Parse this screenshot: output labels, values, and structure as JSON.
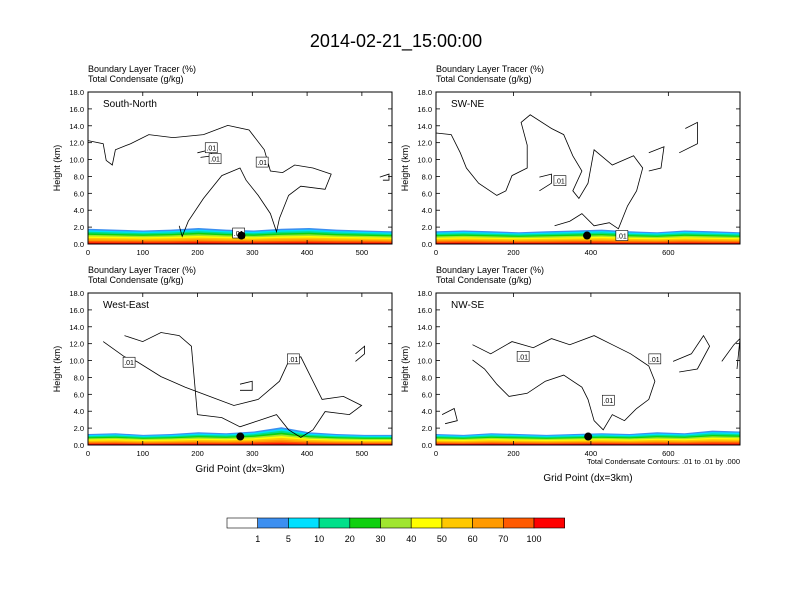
{
  "title": "2014-02-21_15:00:00",
  "contour_note": "Total Condensate Contours: .01 to .01 by .000",
  "chart_data": [
    {
      "type": "heatmap",
      "panel_label": "South-North",
      "subtitle_lines": [
        "Boundary Layer Tracer   (%)",
        "Total Condensate   (g/kg)"
      ],
      "xlabel": "",
      "ylabel": "Height (km)",
      "xlim": [
        0,
        555
      ],
      "ylim": [
        0,
        18
      ],
      "xticks": [
        0,
        100,
        200,
        300,
        400,
        500
      ],
      "yticks": [
        0.0,
        2.0,
        4.0,
        6.0,
        8.0,
        10.0,
        12.0,
        14.0,
        16.0,
        18.0
      ],
      "ytick_labels": [
        "0.0",
        "2.0",
        "4.0",
        "6.0",
        "8.0",
        "10.0",
        "12.0",
        "14.0",
        "16.0",
        "18.0"
      ],
      "tracer_layer_top_km": [
        1.8,
        1.7,
        1.6,
        1.7,
        1.9,
        1.7,
        1.6,
        1.8,
        1.9,
        1.7,
        1.6,
        1.5
      ],
      "contour_labels": [
        {
          "text": ".01",
          "x": 225,
          "y": 11.4
        },
        {
          "text": ".01",
          "x": 232,
          "y": 10.1
        },
        {
          "text": ".01",
          "x": 318,
          "y": 9.7
        },
        {
          "text": ".01",
          "x": 275,
          "y": 1.3
        }
      ],
      "marker": {
        "x": 280,
        "y": 1.0
      }
    },
    {
      "type": "heatmap",
      "panel_label": "SW-NE",
      "subtitle_lines": [
        "Boundary Layer Tracer   (%)",
        "Total Condensate   (g/kg)"
      ],
      "xlabel": "",
      "ylabel": "Height (km)",
      "xlim": [
        0,
        785
      ],
      "ylim": [
        0,
        18
      ],
      "xticks": [
        0,
        200,
        400,
        600
      ],
      "yticks": [
        0.0,
        2.0,
        4.0,
        6.0,
        8.0,
        10.0,
        12.0,
        14.0,
        16.0,
        18.0
      ],
      "ytick_labels": [
        "0.0",
        "2.0",
        "4.0",
        "6.0",
        "8.0",
        "10.0",
        "12.0",
        "14.0",
        "16.0",
        "18.0"
      ],
      "tracer_layer_top_km": [
        1.5,
        1.6,
        1.5,
        1.4,
        1.5,
        1.6,
        1.7,
        1.5,
        1.4,
        1.6,
        1.5,
        1.4
      ],
      "contour_labels": [
        {
          "text": ".01",
          "x": 320,
          "y": 7.5
        },
        {
          "text": ".01",
          "x": 480,
          "y": 1.0
        }
      ],
      "marker": {
        "x": 390,
        "y": 1.0
      }
    },
    {
      "type": "heatmap",
      "panel_label": "West-East",
      "subtitle_lines": [
        "Boundary Layer Tracer   (%)",
        "Total Condensate   (g/kg)"
      ],
      "xlabel": "Grid Point (dx=3km)",
      "ylabel": "Height (km)",
      "xlim": [
        0,
        555
      ],
      "ylim": [
        0,
        18
      ],
      "xticks": [
        0,
        100,
        200,
        300,
        400,
        500
      ],
      "yticks": [
        0.0,
        2.0,
        4.0,
        6.0,
        8.0,
        10.0,
        12.0,
        14.0,
        16.0,
        18.0
      ],
      "ytick_labels": [
        "0.0",
        "2.0",
        "4.0",
        "6.0",
        "8.0",
        "10.0",
        "12.0",
        "14.0",
        "16.0",
        "18.0"
      ],
      "tracer_layer_top_km": [
        1.3,
        1.4,
        1.2,
        1.3,
        1.5,
        1.4,
        1.6,
        2.1,
        1.5,
        1.3,
        1.2,
        1.2
      ],
      "contour_labels": [
        {
          "text": ".01",
          "x": 75,
          "y": 9.8
        },
        {
          "text": ".01",
          "x": 375,
          "y": 10.2
        }
      ],
      "marker": {
        "x": 278,
        "y": 1.0
      }
    },
    {
      "type": "heatmap",
      "panel_label": "NW-SE",
      "subtitle_lines": [
        "Boundary Layer Tracer   (%)",
        "Total Condensate   (g/kg)"
      ],
      "xlabel": "Grid Point (dx=3km)",
      "ylabel": "Height (km)",
      "xlim": [
        0,
        785
      ],
      "ylim": [
        0,
        18
      ],
      "xticks": [
        0,
        200,
        400,
        600
      ],
      "yticks": [
        0.0,
        2.0,
        4.0,
        6.0,
        8.0,
        10.0,
        12.0,
        14.0,
        16.0,
        18.0
      ],
      "ytick_labels": [
        "0.0",
        "2.0",
        "4.0",
        "6.0",
        "8.0",
        "10.0",
        "12.0",
        "14.0",
        "16.0",
        "18.0"
      ],
      "tracer_layer_top_km": [
        1.3,
        1.2,
        1.4,
        1.3,
        1.2,
        1.3,
        1.4,
        1.3,
        1.5,
        1.4,
        1.7,
        1.6
      ],
      "contour_labels": [
        {
          "text": ".01",
          "x": 225,
          "y": 10.5
        },
        {
          "text": ".01",
          "x": 565,
          "y": 10.2
        },
        {
          "text": ".01",
          "x": 445,
          "y": 5.3
        }
      ],
      "marker": {
        "x": 393,
        "y": 1.0
      }
    }
  ],
  "colorbar": {
    "labels": [
      "1",
      "5",
      "10",
      "20",
      "30",
      "40",
      "50",
      "60",
      "70",
      "100"
    ],
    "colors": [
      "#ffffff",
      "#3c8ff0",
      "#00e0ff",
      "#00e08a",
      "#10d010",
      "#a0e630",
      "#ffff00",
      "#ffc800",
      "#ff9a00",
      "#ff5a00",
      "#ff0000"
    ]
  }
}
